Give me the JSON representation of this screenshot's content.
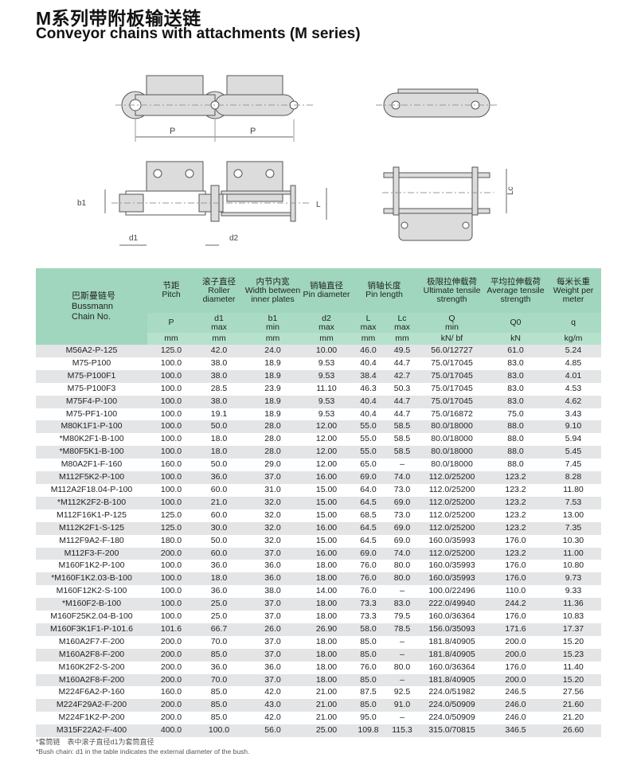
{
  "title_cn": "M系列带附板输送链",
  "title_en": "Conveyor chains with attachments (M series)",
  "diagram_labels": {
    "p1": "P",
    "p2": "P",
    "b1": "b1",
    "L": "L",
    "d1": "d1",
    "d2": "d2",
    "Lc": "Lc"
  },
  "colors": {
    "header": "#9fd6bd",
    "row_stripe": "#e3e5e7",
    "drawing_fill": "#dcdcdc"
  },
  "table": {
    "chain_header": {
      "cn": "巴斯曼链号",
      "en1": "Bussmann",
      "en2": "Chain No."
    },
    "columns": [
      {
        "cn": "节距",
        "en": "Pitch",
        "sym": "P",
        "sub": "",
        "unit": "mm"
      },
      {
        "cn": "滚子直径",
        "en": "Roller diameter",
        "sym": "d1",
        "sub": "max",
        "unit": "mm"
      },
      {
        "cn": "内节内宽",
        "en": "Width between inner plates",
        "sym": "b1",
        "sub": "min",
        "unit": "mm"
      },
      {
        "cn": "销轴直径",
        "en": "Pin diameter",
        "sym": "d2",
        "sub": "max",
        "unit": "mm"
      },
      {
        "cn": "销轴长度",
        "en": "Pin length",
        "sym": "L",
        "sub": "max",
        "unit": "mm",
        "sym2": "Lc",
        "sub2": "max",
        "unit2": "mm"
      },
      {
        "cn": "极限拉伸载荷",
        "en": "Ultimate tensile strength",
        "sym": "Q",
        "sub": "min",
        "unit": "kN/ bf"
      },
      {
        "cn": "平均拉伸载荷",
        "en": "Average tensile strength",
        "sym": "Q0",
        "sub": "",
        "unit": "kN"
      },
      {
        "cn": "每米长重",
        "en": "Weight per meter",
        "sym": "q",
        "sub": "",
        "unit": "kg/m"
      }
    ],
    "rows": [
      [
        "M56A2-P-125",
        "125.0",
        "42.0",
        "24.0",
        "10.00",
        "46.0",
        "49.5",
        "56.0/12727",
        "61.0",
        "5.24"
      ],
      [
        "M75-P100",
        "100.0",
        "38.0",
        "18.9",
        "9.53",
        "40.4",
        "44.7",
        "75.0/17045",
        "83.0",
        "4.85"
      ],
      [
        "M75-P100F1",
        "100.0",
        "38.0",
        "18.9",
        "9.53",
        "38.4",
        "42.7",
        "75.0/17045",
        "83.0",
        "4.01"
      ],
      [
        "M75-P100F3",
        "100.0",
        "28.5",
        "23.9",
        "11.10",
        "46.3",
        "50.3",
        "75.0/17045",
        "83.0",
        "4.53"
      ],
      [
        "M75F4-P-100",
        "100.0",
        "38.0",
        "18.9",
        "9.53",
        "40.4",
        "44.7",
        "75.0/17045",
        "83.0",
        "4.62"
      ],
      [
        "M75-PF1-100",
        "100.0",
        "19.1",
        "18.9",
        "9.53",
        "40.4",
        "44.7",
        "75.0/16872",
        "75.0",
        "3.43"
      ],
      [
        "M80K1F1-P-100",
        "100.0",
        "50.0",
        "28.0",
        "12.00",
        "55.0",
        "58.5",
        "80.0/18000",
        "88.0",
        "9.10"
      ],
      [
        "*M80K2F1-B-100",
        "100.0",
        "18.0",
        "28.0",
        "12.00",
        "55.0",
        "58.5",
        "80.0/18000",
        "88.0",
        "5.94"
      ],
      [
        "*M80F5K1-B-100",
        "100.0",
        "18.0",
        "28.0",
        "12.00",
        "55.0",
        "58.5",
        "80.0/18000",
        "88.0",
        "5.45"
      ],
      [
        "M80A2F1-F-160",
        "160.0",
        "50.0",
        "29.0",
        "12.00",
        "65.0",
        "–",
        "80.0/18000",
        "88.0",
        "7.45"
      ],
      [
        "M112F5K2-P-100",
        "100.0",
        "36.0",
        "37.0",
        "16.00",
        "69.0",
        "74.0",
        "112.0/25200",
        "123.2",
        "8.28"
      ],
      [
        "M112A2F18.04-P-100",
        "100.0",
        "60.0",
        "31.0",
        "15.00",
        "64.0",
        "73.0",
        "112.0/25200",
        "123.2",
        "11.80"
      ],
      [
        "*M112K2F2-B-100",
        "100.0",
        "21.0",
        "32.0",
        "15.00",
        "64.5",
        "69.0",
        "112.0/25200",
        "123.2",
        "7.53"
      ],
      [
        "M112F16K1-P-125",
        "125.0",
        "60.0",
        "32.0",
        "15.00",
        "68.5",
        "73.0",
        "112.0/25200",
        "123.2",
        "13.00"
      ],
      [
        "M112K2F1-S-125",
        "125.0",
        "30.0",
        "32.0",
        "16.00",
        "64.5",
        "69.0",
        "112.0/25200",
        "123.2",
        "7.35"
      ],
      [
        "M112F9A2-F-180",
        "180.0",
        "50.0",
        "32.0",
        "15.00",
        "64.5",
        "69.0",
        "160.0/35993",
        "176.0",
        "10.30"
      ],
      [
        "M112F3-F-200",
        "200.0",
        "60.0",
        "37.0",
        "16.00",
        "69.0",
        "74.0",
        "112.0/25200",
        "123.2",
        "11.00"
      ],
      [
        "M160F1K2-P-100",
        "100.0",
        "36.0",
        "36.0",
        "18.00",
        "76.0",
        "80.0",
        "160.0/35993",
        "176.0",
        "10.80"
      ],
      [
        "*M160F1K2.03-B-100",
        "100.0",
        "18.0",
        "36.0",
        "18.00",
        "76.0",
        "80.0",
        "160.0/35993",
        "176.0",
        "9.73"
      ],
      [
        "M160F12K2-S-100",
        "100.0",
        "36.0",
        "38.0",
        "14.00",
        "76.0",
        "–",
        "100.0/22496",
        "110.0",
        "9.33"
      ],
      [
        "*M160F2-B-100",
        "100.0",
        "25.0",
        "37.0",
        "18.00",
        "73.3",
        "83.0",
        "222.0/49940",
        "244.2",
        "11.36"
      ],
      [
        "M160F25K2.04-B-100",
        "100.0",
        "25.0",
        "37.0",
        "18.00",
        "73.3",
        "79.5",
        "160.0/36364",
        "176.0",
        "10.83"
      ],
      [
        "M160F3K1F1-P-101.6",
        "101.6",
        "66.7",
        "26.0",
        "26.90",
        "58.0",
        "78.5",
        "156.0/35093",
        "171.6",
        "17.37"
      ],
      [
        "M160A2F7-F-200",
        "200.0",
        "70.0",
        "37.0",
        "18.00",
        "85.0",
        "–",
        "181.8/40905",
        "200.0",
        "15.20"
      ],
      [
        "M160A2F8-F-200",
        "200.0",
        "85.0",
        "37.0",
        "18.00",
        "85.0",
        "–",
        "181.8/40905",
        "200.0",
        "15.23"
      ],
      [
        "M160K2F2-S-200",
        "200.0",
        "36.0",
        "36.0",
        "18.00",
        "76.0",
        "80.0",
        "160.0/36364",
        "176.0",
        "11.40"
      ],
      [
        "M160A2F8-F-200",
        "200.0",
        "70.0",
        "37.0",
        "18.00",
        "85.0",
        "–",
        "181.8/40905",
        "200.0",
        "15.20"
      ],
      [
        "M224F6A2-P-160",
        "160.0",
        "85.0",
        "42.0",
        "21.00",
        "87.5",
        "92.5",
        "224.0/51982",
        "246.5",
        "27.56"
      ],
      [
        "M224F29A2-F-200",
        "200.0",
        "85.0",
        "43.0",
        "21.00",
        "85.0",
        "91.0",
        "224.0/50909",
        "246.0",
        "21.60"
      ],
      [
        "M224F1K2-P-200",
        "200.0",
        "85.0",
        "42.0",
        "21.00",
        "95.0",
        "–",
        "224.0/50909",
        "246.0",
        "21.20"
      ],
      [
        "M315F22A2-F-400",
        "400.0",
        "100.0",
        "56.0",
        "25.00",
        "109.8",
        "115.3",
        "315.0/70815",
        "346.5",
        "26.60"
      ]
    ]
  },
  "notes": {
    "cn": "*套筒链　表中滚子直径d1为套筒直径",
    "en": "*Bush chain: d1 in the table indicates the external diameter of the bush."
  }
}
